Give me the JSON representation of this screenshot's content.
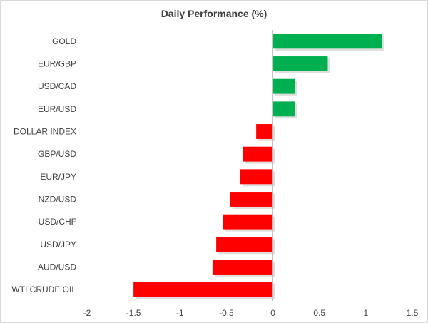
{
  "chart_data": {
    "type": "bar",
    "orientation": "horizontal",
    "title": "Daily Performance (%)",
    "xlabel": "",
    "ylabel": "",
    "xlim": [
      -2,
      1.5
    ],
    "xticks": [
      "-2",
      "-1.5",
      "-1",
      "-0.5",
      "0",
      "0.5",
      "1",
      "1.5"
    ],
    "xtick_values": [
      -2,
      -1.5,
      -1,
      -0.5,
      0,
      0.5,
      1,
      1.5
    ],
    "grid": true,
    "categories": [
      "GOLD",
      "EUR/GBP",
      "USD/CAD",
      "EUR/USD",
      "DOLLAR INDEX",
      "GBP/USD",
      "EUR/JPY",
      "NZD/USD",
      "USD/CHF",
      "USD/JPY",
      "AUD/USD",
      "WTI CRUDE OIL"
    ],
    "values": [
      1.17,
      0.59,
      0.24,
      0.24,
      -0.18,
      -0.32,
      -0.35,
      -0.46,
      -0.54,
      -0.61,
      -0.65,
      -1.5
    ],
    "positive_color": "#00b050",
    "negative_color": "#ff0000"
  }
}
